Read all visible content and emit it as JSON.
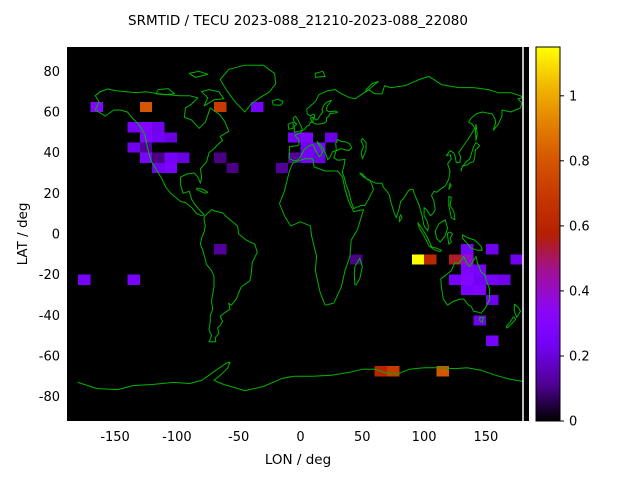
{
  "title": "SRMTID / TECU 2023-088_21210-2023-088_22080",
  "x_axis": {
    "label": "LON / deg",
    "ticks": [
      {
        "value": -150,
        "label": "-150"
      },
      {
        "value": -100,
        "label": "-100"
      },
      {
        "value": -50,
        "label": "-50"
      },
      {
        "value": 0,
        "label": "0"
      },
      {
        "value": 50,
        "label": "50"
      },
      {
        "value": 100,
        "label": "100"
      },
      {
        "value": 150,
        "label": "150"
      }
    ]
  },
  "y_axis": {
    "label": "LAT / deg",
    "ticks": [
      {
        "value": 80,
        "label": "80"
      },
      {
        "value": 60,
        "label": "60"
      },
      {
        "value": 40,
        "label": "40"
      },
      {
        "value": 20,
        "label": "20"
      },
      {
        "value": 0,
        "label": "0"
      },
      {
        "value": -20,
        "label": "-20"
      },
      {
        "value": -40,
        "label": "-40"
      },
      {
        "value": -60,
        "label": "-60"
      },
      {
        "value": -80,
        "label": "-80"
      }
    ]
  },
  "colorbar": {
    "min": 0,
    "max": 1.15,
    "ticks": [
      {
        "value": 0,
        "label": "0"
      },
      {
        "value": 0.2,
        "label": "0.2"
      },
      {
        "value": 0.4,
        "label": "0.4"
      },
      {
        "value": 0.6,
        "label": "0.6"
      },
      {
        "value": 0.8,
        "label": "0.8"
      },
      {
        "value": 1,
        "label": "1"
      }
    ],
    "palette": "black-violet-red-orange-yellow (gnuplot default pm3d)",
    "gradient_stops": [
      [
        "0%",
        "#000000"
      ],
      [
        "10%",
        "#510096"
      ],
      [
        "20%",
        "#7202F2"
      ],
      [
        "25%",
        "#8004FF"
      ],
      [
        "30%",
        "#8C07F2"
      ],
      [
        "40%",
        "#A11096"
      ],
      [
        "50%",
        "#B42000"
      ],
      [
        "60%",
        "#C63700"
      ],
      [
        "70%",
        "#D55700"
      ],
      [
        "80%",
        "#E48300"
      ],
      [
        "90%",
        "#F2BA00"
      ],
      [
        "100%",
        "#FFFF00"
      ]
    ]
  },
  "colors": {
    "page_background": "#ffffff",
    "plot_background": "#000000",
    "coastline": "#00b400",
    "text": "#000000",
    "boundary_line": "#ffffff"
  },
  "chart_data": {
    "type": "heatmap",
    "title": "SRMTID / TECU 2023-088_21210-2023-088_22080",
    "xlabel": "LON / deg",
    "ylabel": "LAT / deg",
    "units": "TECU",
    "xlim": [
      -180,
      180
    ],
    "ylim": [
      -90,
      90
    ],
    "cbrange": [
      0,
      1.15
    ],
    "grid": false,
    "legend_position": "right-colorbar",
    "cell_size_deg": {
      "lon": 10,
      "lat": 5
    },
    "cells": [
      {
        "lon": -165,
        "lat": 62.5,
        "value": 0.3
      },
      {
        "lon": -125,
        "lat": 62.5,
        "value": 0.8
      },
      {
        "lon": -65,
        "lat": 62.5,
        "value": 0.7
      },
      {
        "lon": -35,
        "lat": 62.5,
        "value": 0.25
      },
      {
        "lon": -135,
        "lat": 52.5,
        "value": 0.25
      },
      {
        "lon": -125,
        "lat": 52.5,
        "value": 0.3
      },
      {
        "lon": -115,
        "lat": 52.5,
        "value": 0.22
      },
      {
        "lon": -125,
        "lat": 47.5,
        "value": 0.28
      },
      {
        "lon": -115,
        "lat": 47.5,
        "value": 0.24
      },
      {
        "lon": -105,
        "lat": 47.5,
        "value": 0.2
      },
      {
        "lon": -135,
        "lat": 42.5,
        "value": 0.22
      },
      {
        "lon": -125,
        "lat": 42.5,
        "value": 0.12
      },
      {
        "lon": -125,
        "lat": 37.5,
        "value": 0.26
      },
      {
        "lon": -115,
        "lat": 37.5,
        "value": 0.1
      },
      {
        "lon": -105,
        "lat": 37.5,
        "value": 0.24
      },
      {
        "lon": -95,
        "lat": 37.5,
        "value": 0.2
      },
      {
        "lon": -115,
        "lat": 32.5,
        "value": 0.22
      },
      {
        "lon": -105,
        "lat": 32.5,
        "value": 0.26
      },
      {
        "lon": -65,
        "lat": 37.5,
        "value": 0.1
      },
      {
        "lon": -55,
        "lat": 32.5,
        "value": 0.1
      },
      {
        "lon": -15,
        "lat": 32.5,
        "value": 0.12
      },
      {
        "lon": -5,
        "lat": 47.5,
        "value": 0.24
      },
      {
        "lon": 5,
        "lat": 47.5,
        "value": 0.28
      },
      {
        "lon": 25,
        "lat": 47.5,
        "value": 0.2
      },
      {
        "lon": 5,
        "lat": 42.5,
        "value": 0.22
      },
      {
        "lon": 15,
        "lat": 42.5,
        "value": 0.26
      },
      {
        "lon": -5,
        "lat": 37.5,
        "value": 0.12
      },
      {
        "lon": 5,
        "lat": 37.5,
        "value": 0.24
      },
      {
        "lon": 15,
        "lat": 37.5,
        "value": 0.2
      },
      {
        "lon": -175,
        "lat": -22.5,
        "value": 0.25
      },
      {
        "lon": -135,
        "lat": -22.5,
        "value": 0.25
      },
      {
        "lon": -65,
        "lat": -7.5,
        "value": 0.12
      },
      {
        "lon": 45,
        "lat": -12.5,
        "value": 0.1
      },
      {
        "lon": 95,
        "lat": -12.5,
        "value": 1.15
      },
      {
        "lon": 105,
        "lat": -12.5,
        "value": 0.62
      },
      {
        "lon": 125,
        "lat": -12.5,
        "value": 0.55
      },
      {
        "lon": 135,
        "lat": -12.5,
        "value": 0.4
      },
      {
        "lon": 135,
        "lat": -7.5,
        "value": 0.25
      },
      {
        "lon": 155,
        "lat": -7.5,
        "value": 0.22
      },
      {
        "lon": 175,
        "lat": -12.5,
        "value": 0.22
      },
      {
        "lon": 135,
        "lat": -17.5,
        "value": 0.28
      },
      {
        "lon": 145,
        "lat": -17.5,
        "value": 0.25
      },
      {
        "lon": 125,
        "lat": -22.5,
        "value": 0.25
      },
      {
        "lon": 135,
        "lat": -22.5,
        "value": 0.3
      },
      {
        "lon": 145,
        "lat": -22.5,
        "value": 0.24
      },
      {
        "lon": 155,
        "lat": -22.5,
        "value": 0.25
      },
      {
        "lon": 165,
        "lat": -22.5,
        "value": 0.22
      },
      {
        "lon": 135,
        "lat": -27.5,
        "value": 0.26
      },
      {
        "lon": 145,
        "lat": -27.5,
        "value": 0.28
      },
      {
        "lon": 155,
        "lat": -32.5,
        "value": 0.22
      },
      {
        "lon": 145,
        "lat": -42.5,
        "value": 0.22
      },
      {
        "lon": 155,
        "lat": -52.5,
        "value": 0.25
      },
      {
        "lon": 65,
        "lat": -67.5,
        "value": 0.6
      },
      {
        "lon": 75,
        "lat": -67.5,
        "value": 0.7
      },
      {
        "lon": 115,
        "lat": -67.5,
        "value": 0.8
      }
    ]
  }
}
